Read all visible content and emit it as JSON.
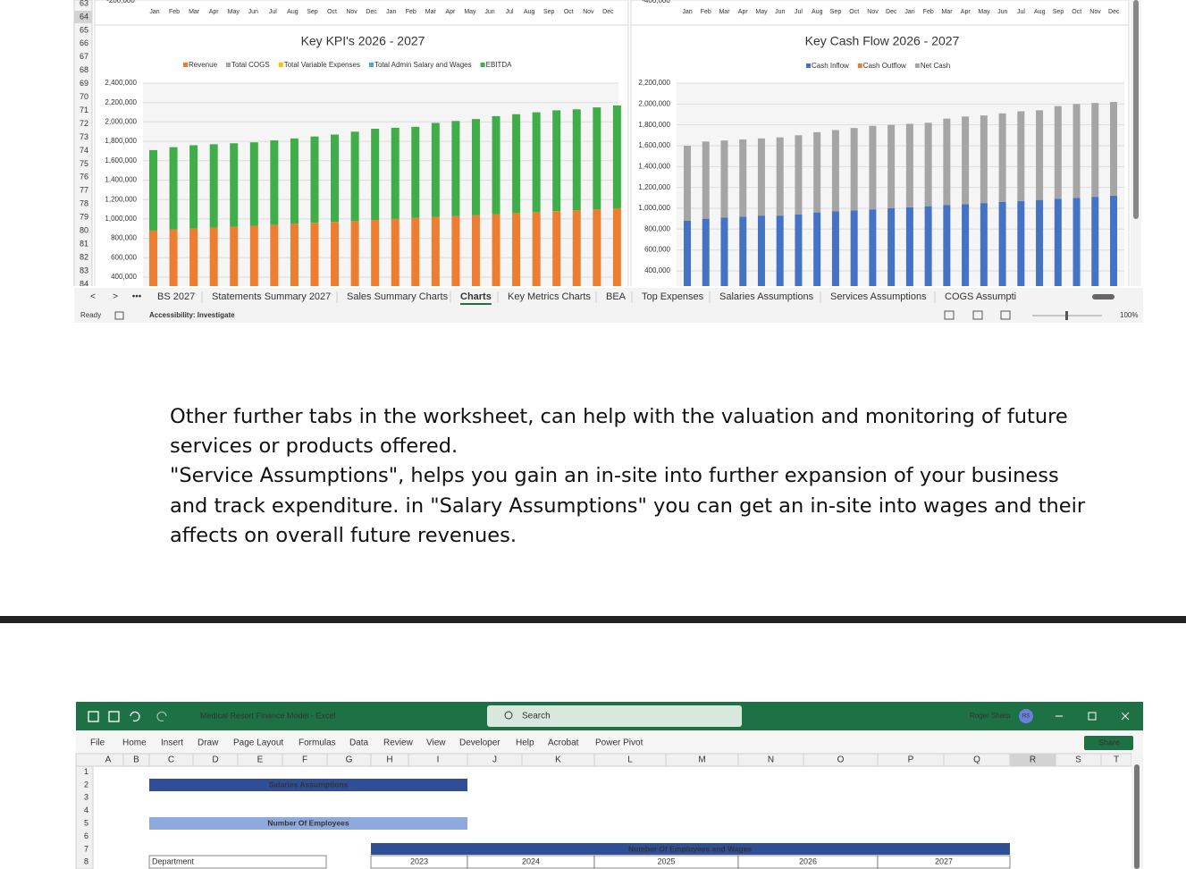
{
  "top_sheet": {
    "row_numbers": [
      63,
      64,
      65,
      66,
      67,
      68,
      69,
      70,
      71,
      72,
      73,
      74,
      75,
      76,
      77,
      78,
      79,
      80,
      81,
      82,
      83,
      84
    ],
    "left_axis_label": "-200,000",
    "right_axis_label": "-400,000",
    "months": [
      "Jan",
      "Feb",
      "Mar",
      "Apr",
      "May",
      "Jun",
      "Jul",
      "Aug",
      "Sep",
      "Oct",
      "Nov",
      "Dec",
      "Jan",
      "Feb",
      "Mar",
      "Apr",
      "May",
      "Jun",
      "Jul",
      "Aug",
      "Sep",
      "Oct",
      "Nov",
      "Dec"
    ],
    "tabs": [
      "BS 2027",
      "Statements Summary 2027",
      "Sales Summary Charts",
      "Charts",
      "Key Metrics Charts",
      "BEA",
      "Top Expenses",
      "Salaries Assumptions",
      "Services Assumptions",
      "COGS Assumpti"
    ],
    "active_tab": 3,
    "status": "Ready",
    "accessibility": "Accessibility: Investigate",
    "zoom": "100%"
  },
  "chart_data": [
    {
      "type": "bar",
      "title": "Key KPI's 2026 - 2027",
      "stacked": true,
      "ylim": [
        0,
        2400000
      ],
      "yticks": [
        {
          "value": 400000,
          "label": "400,000"
        },
        {
          "value": 600000,
          "label": "600,000"
        },
        {
          "value": 800000,
          "label": "800,000"
        },
        {
          "value": 1000000,
          "label": "1,000,000"
        },
        {
          "value": 1200000,
          "label": "1,200,000"
        },
        {
          "value": 1400000,
          "label": "1,400,000"
        },
        {
          "value": 1600000,
          "label": "1,600,000"
        },
        {
          "value": 1800000,
          "label": "1,800,000"
        },
        {
          "value": 2000000,
          "label": "2,000,000"
        },
        {
          "value": 2200000,
          "label": "2,200,000"
        },
        {
          "value": 2400000,
          "label": "2,400,000"
        }
      ],
      "grid": true,
      "series": [
        {
          "name": "Revenue",
          "color": "#ed7d31",
          "values": [
            880000,
            890000,
            900000,
            910000,
            920000,
            930000,
            940000,
            950000,
            960000,
            970000,
            980000,
            990000,
            1000000,
            1010000,
            1020000,
            1030000,
            1040000,
            1050000,
            1060000,
            1070000,
            1080000,
            1090000,
            1100000,
            1110000
          ]
        },
        {
          "name": "Total COGS",
          "color": "#a5a5a5"
        },
        {
          "name": "Total Variable Expenses",
          "color": "#ffc000"
        },
        {
          "name": "Total Admin Salary and Wages",
          "color": "#4bacc6"
        },
        {
          "name": "EBITDA",
          "color": "#3fae49",
          "values": [
            830000,
            850000,
            860000,
            860000,
            860000,
            860000,
            870000,
            880000,
            890000,
            900000,
            920000,
            940000,
            940000,
            940000,
            970000,
            980000,
            990000,
            1010000,
            1020000,
            1030000,
            1040000,
            1040000,
            1050000,
            1060000
          ]
        }
      ]
    },
    {
      "type": "bar",
      "title": "Key Cash Flow 2026 - 2027",
      "stacked": true,
      "ylim": [
        0,
        2200000
      ],
      "yticks": [
        {
          "value": 400000,
          "label": "400,000"
        },
        {
          "value": 600000,
          "label": "600,000"
        },
        {
          "value": 800000,
          "label": "800,000"
        },
        {
          "value": 1000000,
          "label": "1,000,000"
        },
        {
          "value": 1200000,
          "label": "1,200,000"
        },
        {
          "value": 1400000,
          "label": "1,400,000"
        },
        {
          "value": 1600000,
          "label": "1,600,000"
        },
        {
          "value": 1800000,
          "label": "1,800,000"
        },
        {
          "value": 2000000,
          "label": "2,000,000"
        },
        {
          "value": 2200000,
          "label": "2,200,000"
        }
      ],
      "grid": true,
      "series": [
        {
          "name": "Cash Inflow",
          "color": "#4472c4",
          "values": [
            880000,
            900000,
            910000,
            920000,
            930000,
            930000,
            940000,
            960000,
            970000,
            980000,
            990000,
            1000000,
            1010000,
            1020000,
            1030000,
            1040000,
            1050000,
            1060000,
            1070000,
            1080000,
            1090000,
            1100000,
            1110000,
            1120000
          ]
        },
        {
          "name": "Cash Outflow",
          "color": "#ed7d31"
        },
        {
          "name": "Net Cash",
          "color": "#a5a5a5",
          "values": [
            720000,
            740000,
            740000,
            740000,
            740000,
            750000,
            760000,
            770000,
            780000,
            790000,
            800000,
            800000,
            800000,
            800000,
            830000,
            840000,
            840000,
            850000,
            860000,
            860000,
            890000,
            900000,
            900000,
            900000
          ]
        }
      ]
    }
  ],
  "text": {
    "paragraph_1": "Other further tabs in the worksheet, can help with the valuation and monitoring of future services or products offered.",
    "paragraph_2": "\"Service Assumptions\", helps you gain an in-site into further expansion of your business and track expenditure. in \"Salary Assumptions\" you can get an in-site into wages and their affects on overall future revenues."
  },
  "bottom_window": {
    "app_title": "Medical Resort Finance Model  -  Excel",
    "search": "Search",
    "user": "Roger Sharp",
    "initials": "RS",
    "menu": [
      "File",
      "Home",
      "Insert",
      "Draw",
      "Page Layout",
      "Formulas",
      "Data",
      "Review",
      "View",
      "Developer",
      "Help",
      "Acrobat",
      "Power Pivot"
    ],
    "share": "Share",
    "columns": [
      "A",
      "B",
      "C",
      "D",
      "E",
      "F",
      "G",
      "H",
      "I",
      "J",
      "K",
      "L",
      "M",
      "N",
      "O",
      "P",
      "Q",
      "R",
      "S",
      "T"
    ],
    "rows": [
      1,
      2,
      3,
      4,
      5,
      6,
      7,
      8
    ],
    "cells": {
      "title": "Salaries Assumptions",
      "subtitle": "Number Of Employees",
      "table_header": "Number Of Employees and Wages",
      "department": "Department",
      "years": [
        2023,
        2024,
        2025,
        2026,
        2027
      ]
    }
  }
}
